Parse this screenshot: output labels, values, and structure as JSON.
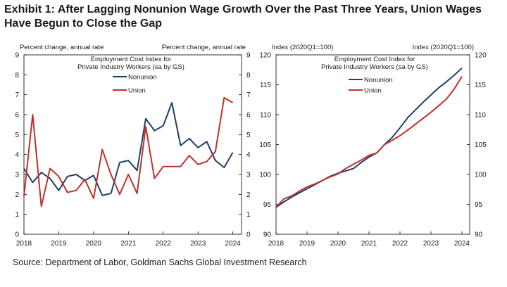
{
  "title": "Exhibit 1: After Lagging Nonunion Wage Growth Over the Past Three Years, Union Wages Have Begun to Close the Gap",
  "source": "Source: Department of Labor, Goldman Sachs Global Investment Research",
  "colors": {
    "nonunion": "#1f3f66",
    "union": "#c0302b"
  },
  "chart_data": [
    {
      "type": "line",
      "title": "Employment Cost Index for Private Industry Workers (sa by GS)",
      "title_lines": [
        "Employment Cost Index for",
        "Private Industry Workers (sa by GS)"
      ],
      "ylabel_left": "Percent change, annual rate",
      "ylabel_right": "Percent change, annual rate",
      "ylim": [
        0,
        9
      ],
      "yticks": [
        "0",
        "1",
        "2",
        "3",
        "4",
        "5",
        "6",
        "7",
        "8",
        "9"
      ],
      "xlim": [
        2018.0,
        2024.25
      ],
      "xticks": [
        "2018",
        "2019",
        "2020",
        "2021",
        "2022",
        "2023",
        "2024"
      ],
      "legend": [
        "Nonunion",
        "Union"
      ],
      "legend_position": "top-left",
      "series": [
        {
          "name": "Nonunion",
          "x": [
            2018.0,
            2018.25,
            2018.5,
            2018.75,
            2019.0,
            2019.25,
            2019.5,
            2019.75,
            2020.0,
            2020.25,
            2020.5,
            2020.75,
            2021.0,
            2021.25,
            2021.5,
            2021.75,
            2022.0,
            2022.25,
            2022.5,
            2022.75,
            2023.0,
            2023.25,
            2023.5,
            2023.75,
            2024.0
          ],
          "values": [
            3.3,
            2.6,
            3.1,
            2.8,
            2.2,
            2.9,
            3.0,
            2.7,
            2.95,
            1.95,
            2.05,
            3.6,
            3.7,
            3.2,
            5.8,
            5.2,
            5.45,
            6.6,
            4.45,
            4.8,
            4.35,
            4.65,
            3.7,
            3.35,
            4.1
          ]
        },
        {
          "name": "Union",
          "x": [
            2018.0,
            2018.25,
            2018.5,
            2018.75,
            2019.0,
            2019.25,
            2019.5,
            2019.75,
            2020.0,
            2020.25,
            2020.5,
            2020.75,
            2021.0,
            2021.25,
            2021.5,
            2021.75,
            2022.0,
            2022.25,
            2022.5,
            2022.75,
            2023.0,
            2023.25,
            2023.5,
            2023.75,
            2024.0
          ],
          "values": [
            1.9,
            6.0,
            1.4,
            3.3,
            2.9,
            2.1,
            2.2,
            2.75,
            1.8,
            4.25,
            3.0,
            2.0,
            3.0,
            2.05,
            5.4,
            2.8,
            3.4,
            3.4,
            3.4,
            3.95,
            3.5,
            3.65,
            4.15,
            6.85,
            6.6
          ]
        }
      ]
    },
    {
      "type": "line",
      "title": "Employment Cost Index for Private Industry Workers (sa by GS)",
      "title_lines": [
        "Employment Cost Index for",
        "Private Industry Workers (sa by GS)"
      ],
      "ylabel_left": "Index (2020Q1=100)",
      "ylabel_right": "Index (2020Q1=100)",
      "ylim": [
        90,
        120
      ],
      "yticks": [
        "90",
        "95",
        "100",
        "105",
        "110",
        "115",
        "120"
      ],
      "xlim": [
        2018.0,
        2024.25
      ],
      "xticks": [
        "2018",
        "2019",
        "2020",
        "2021",
        "2022",
        "2023",
        "2024"
      ],
      "legend": [
        "Nonunion",
        "Union"
      ],
      "legend_position": "top-left",
      "series": [
        {
          "name": "Nonunion",
          "x": [
            2018.0,
            2018.25,
            2018.5,
            2018.75,
            2019.0,
            2019.25,
            2019.5,
            2019.75,
            2020.0,
            2020.25,
            2020.5,
            2020.75,
            2021.0,
            2021.25,
            2021.5,
            2021.75,
            2022.0,
            2022.25,
            2022.5,
            2022.75,
            2023.0,
            2023.25,
            2023.5,
            2023.75,
            2024.0
          ],
          "values": [
            94.5,
            95.4,
            96.2,
            96.9,
            97.6,
            98.3,
            99.0,
            99.7,
            100.2,
            100.6,
            101.0,
            102.0,
            102.9,
            103.6,
            105.0,
            106.2,
            107.8,
            109.5,
            110.8,
            112.1,
            113.3,
            114.5,
            115.5,
            116.6,
            117.8
          ]
        },
        {
          "name": "Union",
          "x": [
            2018.0,
            2018.25,
            2018.5,
            2018.75,
            2019.0,
            2019.25,
            2019.5,
            2019.75,
            2020.0,
            2020.25,
            2020.5,
            2020.75,
            2021.0,
            2021.25,
            2021.5,
            2021.75,
            2022.0,
            2022.25,
            2022.5,
            2022.75,
            2023.0,
            2023.25,
            2023.5,
            2023.75,
            2024.0
          ],
          "values": [
            94.5,
            95.9,
            96.4,
            97.2,
            97.9,
            98.4,
            99.0,
            99.6,
            100.1,
            101.0,
            101.7,
            102.4,
            103.2,
            103.6,
            105.0,
            105.7,
            106.5,
            107.4,
            108.4,
            109.4,
            110.4,
            111.5,
            112.6,
            114.3,
            116.4
          ]
        }
      ]
    }
  ]
}
